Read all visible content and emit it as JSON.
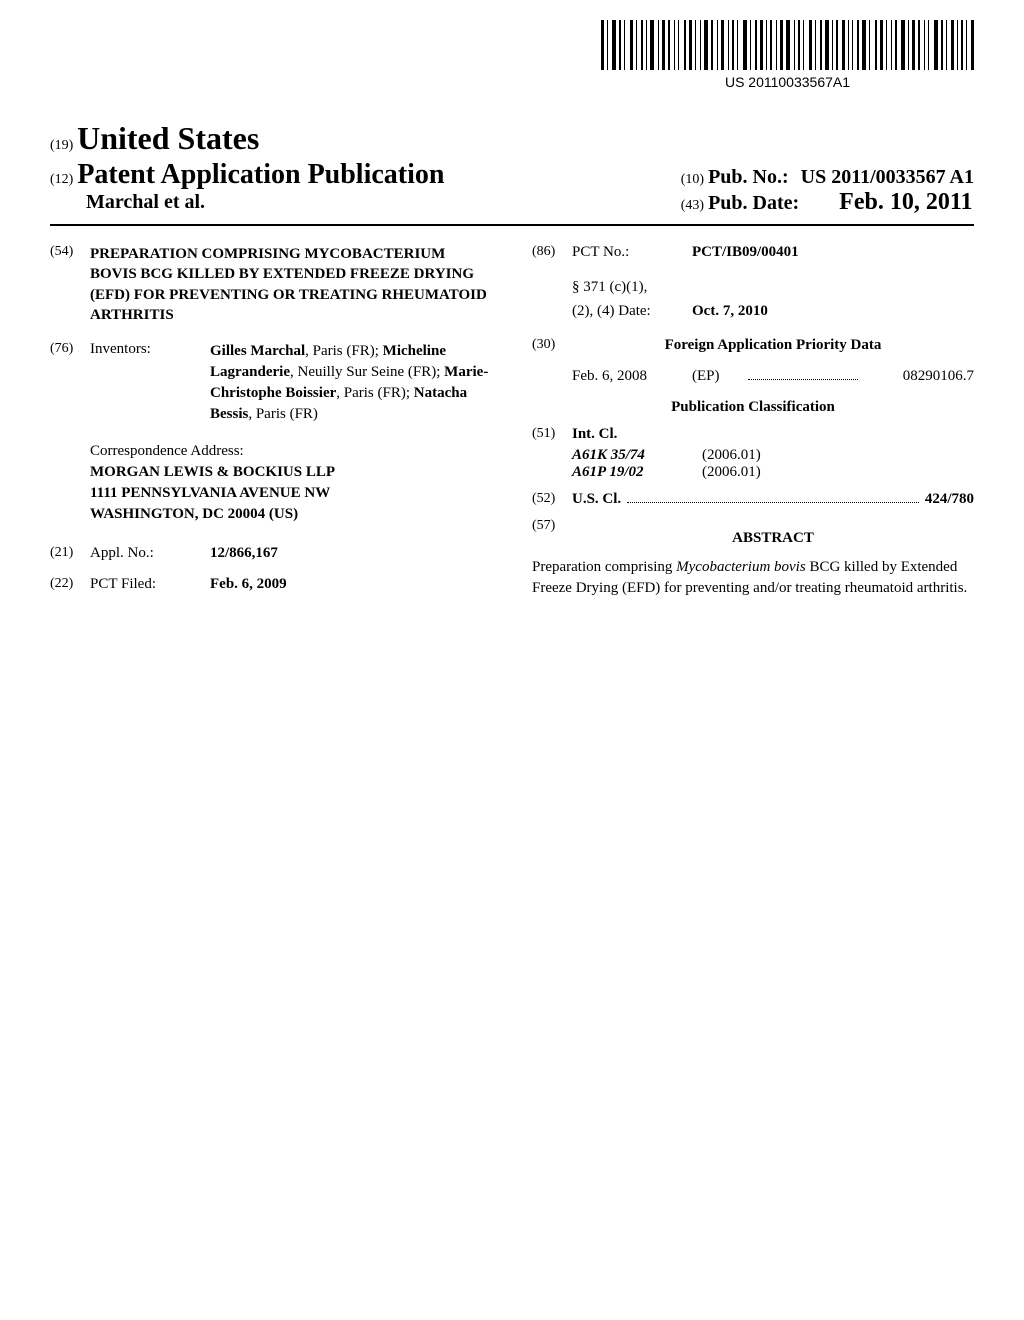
{
  "barcode_text": "US 20110033567A1",
  "header": {
    "country_code": "(19)",
    "country_name": "United States",
    "pub_type_code": "(12)",
    "pub_type": "Patent Application Publication",
    "authors": "Marchal et al.",
    "pub_no_code": "(10)",
    "pub_no_label": "Pub. No.:",
    "pub_no_value": "US 2011/0033567 A1",
    "pub_date_code": "(43)",
    "pub_date_label": "Pub. Date:",
    "pub_date_value": "Feb. 10, 2011"
  },
  "left": {
    "title_inid": "(54)",
    "title": "PREPARATION COMPRISING MYCOBACTERIUM BOVIS BCG KILLED BY EXTENDED FREEZE DRYING (EFD) FOR PREVENTING OR TREATING RHEUMATOID ARTHRITIS",
    "inventors_inid": "(76)",
    "inventors_label": "Inventors:",
    "inventors_html": "Gilles Marchal|, Paris (FR); |Micheline Lagranderie|, Neuilly Sur Seine (FR); |Marie-Christophe Boissier|, Paris (FR); |Natacha Bessis|, Paris (FR)",
    "correspondence_label": "Correspondence Address:",
    "correspondence_lines": [
      "MORGAN LEWIS & BOCKIUS LLP",
      "1111 PENNSYLVANIA AVENUE NW",
      "WASHINGTON, DC 20004 (US)"
    ],
    "appl_inid": "(21)",
    "appl_label": "Appl. No.:",
    "appl_value": "12/866,167",
    "pct_filed_inid": "(22)",
    "pct_filed_label": "PCT Filed:",
    "pct_filed_value": "Feb. 6, 2009"
  },
  "right": {
    "pct_inid": "(86)",
    "pct_label": "PCT No.:",
    "pct_value": "PCT/IB09/00401",
    "s371_label": "§ 371 (c)(1),",
    "s371_date_label": "(2), (4) Date:",
    "s371_date_value": "Oct. 7, 2010",
    "foreign_inid": "(30)",
    "foreign_heading": "Foreign Application Priority Data",
    "priority_date": "Feb. 6, 2008",
    "priority_country": "(EP)",
    "priority_number": "08290106.7",
    "pub_class_heading": "Publication Classification",
    "int_cl_inid": "(51)",
    "int_cl_label": "Int. Cl.",
    "int_cl": [
      {
        "code": "A61K 35/74",
        "date": "(2006.01)"
      },
      {
        "code": "A61P 19/02",
        "date": "(2006.01)"
      }
    ],
    "us_cl_inid": "(52)",
    "us_cl_label": "U.S. Cl.",
    "us_cl_value": "424/780",
    "abstract_inid": "(57)",
    "abstract_heading": "ABSTRACT",
    "abstract_text_pre": "Preparation comprising ",
    "abstract_text_italic": "Mycobacterium bovis",
    "abstract_text_post": " BCG killed by Extended Freeze Drying (EFD) for preventing and/or treating rheumatoid arthritis."
  }
}
